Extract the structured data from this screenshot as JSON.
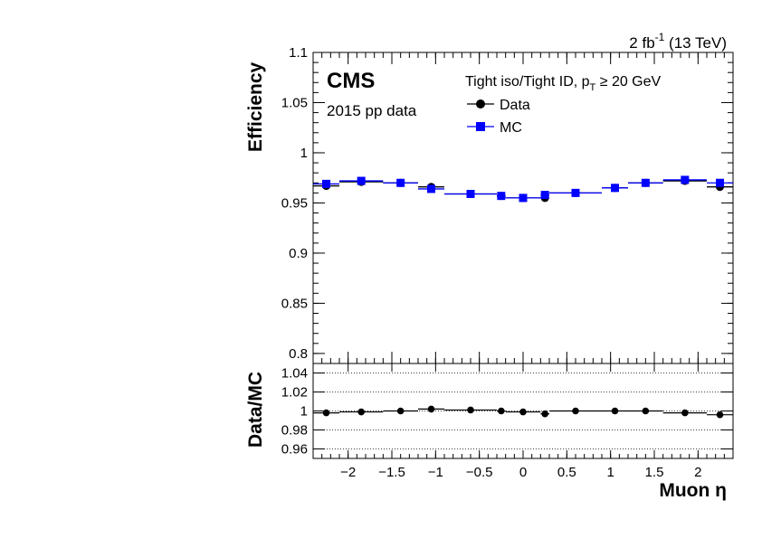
{
  "header": {
    "lumi_value": "2 fb",
    "lumi_exp": "-1",
    "lumi_energy": " (13 TeV)"
  },
  "labels": {
    "cms": "CMS",
    "dataset": "2015 pp data",
    "selection_prefix": "Tight iso/Tight ID, p",
    "selection_sub": "T",
    "selection_suffix": " ≥ 20 GeV"
  },
  "chart_data": [
    {
      "type": "scatter",
      "ylabel": "Efficiency",
      "xlim": [
        -2.4,
        2.4
      ],
      "ylim": [
        0.79,
        1.1
      ],
      "yticks": [
        0.8,
        0.85,
        0.9,
        0.95,
        1,
        1.05,
        1.1
      ],
      "ytick_labels": [
        "0.8",
        "0.85",
        "0.9",
        "0.95",
        "1",
        "1.05",
        "1.1"
      ],
      "legend_position": "top-center",
      "x_bins": [
        [
          -2.4,
          -2.1
        ],
        [
          -2.1,
          -1.6
        ],
        [
          -1.6,
          -1.2
        ],
        [
          -1.2,
          -0.9
        ],
        [
          -0.9,
          -0.3
        ],
        [
          -0.3,
          -0.2
        ],
        [
          -0.2,
          0.2
        ],
        [
          0.2,
          0.3
        ],
        [
          0.3,
          0.9
        ],
        [
          0.9,
          1.2
        ],
        [
          1.2,
          1.6
        ],
        [
          1.6,
          2.1
        ],
        [
          2.1,
          2.4
        ]
      ],
      "x": [
        -2.25,
        -1.85,
        -1.4,
        -1.05,
        -0.6,
        -0.25,
        0,
        0.25,
        0.6,
        1.05,
        1.4,
        1.85,
        2.25
      ],
      "series": [
        {
          "name": "Data",
          "color": "#000000",
          "marker": "circle",
          "values": [
            0.967,
            0.971,
            0.97,
            0.966,
            0.959,
            0.957,
            0.955,
            0.955,
            0.96,
            0.965,
            0.97,
            0.972,
            0.966
          ]
        },
        {
          "name": "MC",
          "color": "#0000ff",
          "marker": "square",
          "values": [
            0.969,
            0.972,
            0.97,
            0.964,
            0.959,
            0.957,
            0.955,
            0.958,
            0.96,
            0.965,
            0.97,
            0.973,
            0.97
          ]
        }
      ]
    },
    {
      "type": "scatter",
      "ylabel": "Data/MC",
      "xlabel": "Muon η",
      "xlim": [
        -2.4,
        2.4
      ],
      "ylim": [
        0.95,
        1.05
      ],
      "yticks": [
        0.96,
        0.98,
        1,
        1.02,
        1.04
      ],
      "ytick_labels": [
        "0.96",
        "0.98",
        "1",
        "1.02",
        "1.04"
      ],
      "xticks": [
        -2,
        -1.5,
        -1,
        -0.5,
        0,
        0.5,
        1,
        1.5,
        2
      ],
      "xtick_labels": [
        "−2",
        "−1.5",
        "−1",
        "−0.5",
        "0",
        "0.5",
        "1",
        "1.5",
        "2"
      ],
      "grid": "horizontal-dotted",
      "series": [
        {
          "name": "Data/MC",
          "color": "#000000",
          "marker": "circle",
          "values": [
            0.998,
            0.999,
            1.0,
            1.002,
            1.001,
            1.0,
            0.999,
            0.997,
            1.0,
            1.0,
            1.0,
            0.998,
            0.996
          ]
        }
      ]
    }
  ]
}
